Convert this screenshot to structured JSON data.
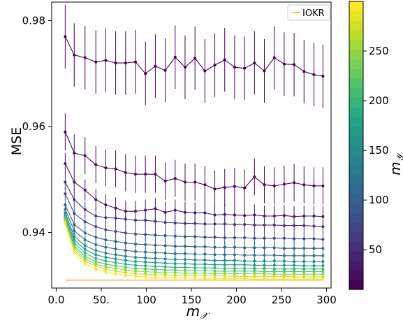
{
  "chart_data": {
    "type": "line",
    "title": "",
    "xlabel_main": "m",
    "xlabel_sub": "𝒳",
    "ylabel": "MSE",
    "colorbar_label_main": "m",
    "colorbar_label_sub": "𝒴",
    "xlim": [
      -5,
      305
    ],
    "ylim": [
      0.9295,
      0.9835
    ],
    "x_ticks": [
      0,
      50,
      100,
      150,
      200,
      250,
      300
    ],
    "x_tick_labels": [
      "0.0",
      "50.",
      "100",
      "150",
      "200",
      "250",
      "300"
    ],
    "y_ticks": [
      0.94,
      0.96,
      0.98
    ],
    "y_tick_labels": [
      "0.94",
      "0.96",
      "0.98"
    ],
    "colorbar_range": [
      10,
      300
    ],
    "colorbar_ticks": [
      50,
      100,
      150,
      200,
      250
    ],
    "colorbar_tick_labels": [
      "50",
      "100",
      "150",
      "200",
      "250"
    ],
    "colormap": "viridis",
    "legend": {
      "position": "top-right",
      "entries": [
        {
          "label": "IOKR",
          "color": "#ff9f2a"
        }
      ]
    },
    "x": [
      10,
      20,
      32,
      44,
      55,
      66,
      77,
      88,
      99,
      110,
      121,
      132,
      143,
      154,
      165,
      176,
      187,
      198,
      209,
      220,
      231,
      242,
      253,
      264,
      275,
      286,
      296
    ],
    "series": [
      {
        "my": 10,
        "color": "#440154",
        "err": 0.006,
        "values": [
          0.977,
          0.9735,
          0.973,
          0.9722,
          0.9725,
          0.972,
          0.972,
          0.9722,
          0.97,
          0.9714,
          0.9706,
          0.9731,
          0.9712,
          0.9729,
          0.9705,
          0.9716,
          0.9726,
          0.9712,
          0.971,
          0.972,
          0.9705,
          0.973,
          0.9718,
          0.9717,
          0.9704,
          0.9698,
          0.9695
        ]
      },
      {
        "my": 25,
        "color": "#46085c",
        "err": 0.0035,
        "values": [
          0.959,
          0.955,
          0.9545,
          0.9528,
          0.9522,
          0.952,
          0.9513,
          0.951,
          0.951,
          0.951,
          0.9497,
          0.9502,
          0.9495,
          0.9495,
          0.949,
          0.9482,
          0.9485,
          0.9487,
          0.9484,
          0.9505,
          0.949,
          0.9488,
          0.9491,
          0.9494,
          0.949,
          0.9488,
          0.9488
        ]
      },
      {
        "my": 45,
        "color": "#471365",
        "err": 0.002,
        "values": [
          0.953,
          0.9495,
          0.948,
          0.9462,
          0.9452,
          0.9446,
          0.944,
          0.944,
          0.9442,
          0.9445,
          0.9438,
          0.9442,
          0.9438,
          0.9437,
          0.9437,
          0.9433,
          0.9434,
          0.9433,
          0.9432,
          0.9433,
          0.9431,
          0.9431,
          0.9432,
          0.943,
          0.9431,
          0.9431,
          0.943
        ]
      },
      {
        "my": 65,
        "color": "#46327e",
        "err": 0.0015,
        "values": [
          0.9495,
          0.9462,
          0.9443,
          0.9431,
          0.9428,
          0.9427,
          0.9425,
          0.9423,
          0.9423,
          0.9421,
          0.9419,
          0.9418,
          0.9417,
          0.9417,
          0.9416,
          0.9416,
          0.9416,
          0.9415,
          0.9415,
          0.9414,
          0.9414,
          0.9414,
          0.9413,
          0.9413,
          0.9413,
          0.9412,
          0.9411
        ]
      },
      {
        "my": 85,
        "color": "#3f4788",
        "err": 0.0012,
        "values": [
          0.9473,
          0.9436,
          0.942,
          0.9411,
          0.9405,
          0.9402,
          0.9399,
          0.9397,
          0.9396,
          0.9395,
          0.9394,
          0.9393,
          0.9392,
          0.9392,
          0.9391,
          0.9391,
          0.939,
          0.939,
          0.939,
          0.9389,
          0.9389,
          0.9389,
          0.9389,
          0.9388,
          0.9388,
          0.9388,
          0.9387
        ]
      },
      {
        "my": 105,
        "color": "#355e8d",
        "err": 0.001,
        "values": [
          0.9452,
          0.9415,
          0.9399,
          0.9391,
          0.9386,
          0.9383,
          0.938,
          0.9378,
          0.9377,
          0.9376,
          0.9375,
          0.9374,
          0.9374,
          0.9373,
          0.9373,
          0.9372,
          0.9372,
          0.9372,
          0.9371,
          0.9371,
          0.9371,
          0.9371,
          0.937,
          0.937,
          0.937,
          0.937,
          0.937
        ]
      },
      {
        "my": 130,
        "color": "#2c728e",
        "err": 0.0009,
        "values": [
          0.9443,
          0.9403,
          0.9386,
          0.9377,
          0.9372,
          0.9369,
          0.9366,
          0.9364,
          0.9363,
          0.9362,
          0.9361,
          0.936,
          0.936,
          0.9359,
          0.9359,
          0.9358,
          0.9358,
          0.9358,
          0.9357,
          0.9357,
          0.9357,
          0.9357,
          0.9356,
          0.9356,
          0.9356,
          0.9356,
          0.9356
        ]
      },
      {
        "my": 150,
        "color": "#24868e",
        "err": 0.0008,
        "values": [
          0.9437,
          0.9393,
          0.9375,
          0.9366,
          0.9361,
          0.9358,
          0.9355,
          0.9353,
          0.9352,
          0.9351,
          0.935,
          0.9349,
          0.9349,
          0.9348,
          0.9348,
          0.9347,
          0.9347,
          0.9347,
          0.9346,
          0.9346,
          0.9346,
          0.9346,
          0.9346,
          0.9345,
          0.9345,
          0.9345,
          0.9345
        ]
      },
      {
        "my": 175,
        "color": "#1f9a8a",
        "err": 0.0007,
        "values": [
          0.9433,
          0.9386,
          0.9368,
          0.9358,
          0.9353,
          0.935,
          0.9347,
          0.9345,
          0.9344,
          0.9343,
          0.9342,
          0.9341,
          0.9341,
          0.934,
          0.934,
          0.9339,
          0.9339,
          0.9339,
          0.9339,
          0.9338,
          0.9338,
          0.9338,
          0.9338,
          0.9338,
          0.9337,
          0.9337,
          0.9337
        ]
      },
      {
        "my": 200,
        "color": "#2ab07f",
        "err": 0.0006,
        "values": [
          0.9429,
          0.938,
          0.9361,
          0.9351,
          0.9346,
          0.9343,
          0.934,
          0.9338,
          0.9337,
          0.9336,
          0.9335,
          0.9334,
          0.9334,
          0.9333,
          0.9333,
          0.9333,
          0.9332,
          0.9332,
          0.9332,
          0.9332,
          0.9332,
          0.9331,
          0.9331,
          0.9331,
          0.9331,
          0.9331,
          0.9331
        ]
      },
      {
        "my": 220,
        "color": "#52c569",
        "err": 0.0006,
        "values": [
          0.9426,
          0.9375,
          0.9355,
          0.9345,
          0.934,
          0.9337,
          0.9334,
          0.9332,
          0.9331,
          0.933,
          0.9329,
          0.9329,
          0.9328,
          0.9328,
          0.9328,
          0.9327,
          0.9327,
          0.9327,
          0.9327,
          0.9327,
          0.9326,
          0.9326,
          0.9326,
          0.9326,
          0.9326,
          0.9326,
          0.9326
        ]
      },
      {
        "my": 245,
        "color": "#86d549",
        "err": 0.0005,
        "values": [
          0.9423,
          0.9371,
          0.935,
          0.934,
          0.9335,
          0.9332,
          0.9329,
          0.9327,
          0.9326,
          0.9325,
          0.9324,
          0.9324,
          0.9323,
          0.9323,
          0.9323,
          0.9322,
          0.9322,
          0.9322,
          0.9322,
          0.9322,
          0.9322,
          0.9321,
          0.9321,
          0.9321,
          0.9321,
          0.9321,
          0.9321
        ]
      },
      {
        "my": 265,
        "color": "#c2df23",
        "err": 0.0005,
        "values": [
          0.942,
          0.9367,
          0.9346,
          0.9336,
          0.933,
          0.9327,
          0.9324,
          0.9322,
          0.9321,
          0.932,
          0.932,
          0.9319,
          0.9319,
          0.9318,
          0.9318,
          0.9318,
          0.9318,
          0.9317,
          0.9317,
          0.9317,
          0.9317,
          0.9317,
          0.9317,
          0.9316,
          0.9316,
          0.9316,
          0.9316
        ]
      },
      {
        "my": 290,
        "color": "#fde725",
        "err": 0.0005,
        "values": [
          0.9417,
          0.9363,
          0.9341,
          0.9331,
          0.9325,
          0.9322,
          0.9319,
          0.9317,
          0.9316,
          0.9315,
          0.9315,
          0.9314,
          0.9314,
          0.9314,
          0.9313,
          0.9313,
          0.9313,
          0.9313,
          0.9313,
          0.9312,
          0.9312,
          0.9312,
          0.9312,
          0.9312,
          0.9312,
          0.9312,
          0.9312
        ]
      }
    ],
    "reference_line": {
      "label": "IOKR",
      "value": 0.931,
      "x_range": [
        10,
        296
      ],
      "color": "#ff9f2a"
    }
  }
}
